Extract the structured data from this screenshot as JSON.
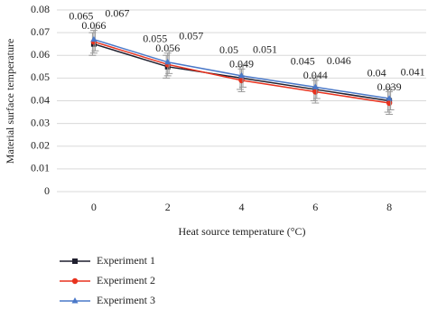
{
  "chart_data": {
    "type": "line",
    "x_label": "Heat source temperature (°C)",
    "y_label": "Material surface temperature",
    "categories": [
      0,
      2,
      4,
      6,
      8
    ],
    "ylim": [
      0,
      0.08
    ],
    "yticks": [
      0,
      0.01,
      0.02,
      0.03,
      0.04,
      0.05,
      0.06,
      0.07,
      0.08
    ],
    "grid": true,
    "legend": "bottom-left",
    "series": [
      {
        "name": "Experiment 1",
        "color": "#1f1f2e",
        "marker": "square",
        "values": [
          0.065,
          0.055,
          0.05,
          0.045,
          0.04
        ],
        "errors": [
          0.005,
          0.005,
          0.005,
          0.005,
          0.005
        ]
      },
      {
        "name": "Experiment 2",
        "color": "#e8321e",
        "marker": "circle",
        "values": [
          0.066,
          0.056,
          0.049,
          0.044,
          0.039
        ],
        "errors": [
          0.005,
          0.005,
          0.005,
          0.005,
          0.005
        ]
      },
      {
        "name": "Experiment 3",
        "color": "#4a78c8",
        "marker": "triangle",
        "values": [
          0.067,
          0.057,
          0.051,
          0.046,
          0.041
        ],
        "errors": [
          0.005,
          0.005,
          0.005,
          0.005,
          0.005
        ]
      }
    ]
  }
}
